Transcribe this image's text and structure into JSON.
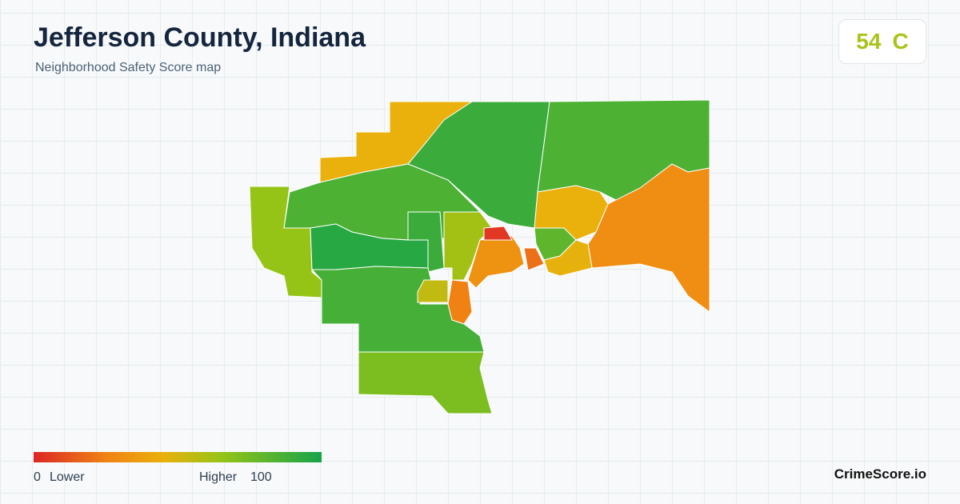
{
  "header": {
    "title": "Jefferson County, Indiana",
    "subtitle": "Neighborhood Safety Score map"
  },
  "badge": {
    "score": "54",
    "grade": "C"
  },
  "legend": {
    "min": 0,
    "min_label": "Lower",
    "max_label": "Higher",
    "max": 100
  },
  "map": {
    "regions": [
      {
        "score": 90
      },
      {
        "score": 45
      },
      {
        "score": 85
      },
      {
        "score": 30
      },
      {
        "score": 45
      },
      {
        "score": 65
      },
      {
        "score": 85
      },
      {
        "score": 95
      },
      {
        "score": 90
      },
      {
        "score": 62
      },
      {
        "score": 87
      },
      {
        "score": 72
      },
      {
        "score": 32
      },
      {
        "score": 5
      },
      {
        "score": 25
      },
      {
        "score": 55
      },
      {
        "score": 80
      },
      {
        "score": 20
      },
      {
        "score": 46
      }
    ]
  },
  "footer": {
    "brand": "CrimeScore.io"
  }
}
